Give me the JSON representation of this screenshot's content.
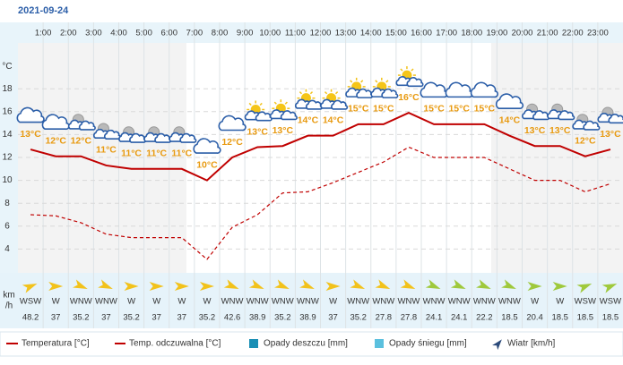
{
  "date": "2021-09-24",
  "chart_data": {
    "type": "line",
    "hour_labels": [
      "1:00",
      "2:00",
      "3:00",
      "4:00",
      "5:00",
      "6:00",
      "7:00",
      "8:00",
      "9:00",
      "10:00",
      "11:00",
      "12:00",
      "13:00",
      "14:00",
      "15:00",
      "16:00",
      "17:00",
      "18:00",
      "19:00",
      "20:00",
      "21:00",
      "22:00",
      "23:00"
    ],
    "y_unit": "°C",
    "ylim": [
      2,
      22
    ],
    "yticks": [
      4,
      6,
      8,
      10,
      12,
      14,
      16,
      18
    ],
    "grid": true,
    "series": [
      {
        "name": "Temperatura [°C]",
        "color": "#c00000",
        "dashed": false,
        "values": [
          12.7,
          12.1,
          12.1,
          11.3,
          11.0,
          11.0,
          11.0,
          10.0,
          12.0,
          12.9,
          13.0,
          13.9,
          13.9,
          14.9,
          14.9,
          15.9,
          14.9,
          14.9,
          14.9,
          13.9,
          13.0,
          13.0,
          12.1,
          12.7
        ],
        "value_labels": [
          "13°C",
          "12°C",
          "12°C",
          "11°C",
          "11°C",
          "11°C",
          "11°C",
          "10°C",
          "12°C",
          "13°C",
          "13°C",
          "14°C",
          "14°C",
          "15°C",
          "15°C",
          "16°C",
          "15°C",
          "15°C",
          "15°C",
          "14°C",
          "13°C",
          "13°C",
          "12°C",
          "13°C"
        ]
      },
      {
        "name": "Temp. odczuwalna [°C]",
        "color": "#c00000",
        "dashed": true,
        "values": [
          7.0,
          6.9,
          6.3,
          5.3,
          5.0,
          5.0,
          5.0,
          3.1,
          5.9,
          7.0,
          8.9,
          9.0,
          9.8,
          10.7,
          11.6,
          12.9,
          12.0,
          12.0,
          12.0,
          11.0,
          10.0,
          10.0,
          9.0,
          9.7
        ]
      }
    ],
    "legend_extra": [
      {
        "name": "Opady deszczu [mm]",
        "color": "#1a8fb5"
      },
      {
        "name": "Opady śniegu [mm]",
        "color": "#5bc0de"
      }
    ],
    "wind": {
      "name": "Wiatr [km/h]",
      "unit": [
        "km",
        "/h"
      ],
      "directions": [
        "WSW",
        "W",
        "WNW",
        "WNW",
        "W",
        "W",
        "W",
        "W",
        "WNW",
        "WNW",
        "WNW",
        "WNW",
        "W",
        "WNW",
        "WNW",
        "WNW",
        "WNW",
        "WNW",
        "WNW",
        "WNW",
        "W",
        "W",
        "WSW",
        "WSW"
      ],
      "values": [
        48.2,
        37,
        35.2,
        37,
        35.2,
        37,
        37,
        35.2,
        42.6,
        38.9,
        35.2,
        38.9,
        37,
        35.2,
        27.8,
        27.8,
        24.1,
        24.1,
        22.2,
        18.5,
        20.4,
        18.5,
        18.5,
        18.5
      ],
      "colors": [
        "#f2c21b",
        "#f2c21b",
        "#f2c21b",
        "#f2c21b",
        "#f2c21b",
        "#f2c21b",
        "#f2c21b",
        "#f2c21b",
        "#f2c21b",
        "#f2c21b",
        "#f2c21b",
        "#f2c21b",
        "#f2c21b",
        "#f2c21b",
        "#f2c21b",
        "#f2c21b",
        "#9fc93c",
        "#9fc93c",
        "#9fc93c",
        "#9fc93c",
        "#9fc93c",
        "#9fc93c",
        "#9fc93c",
        "#9fc93c"
      ]
    }
  }
}
